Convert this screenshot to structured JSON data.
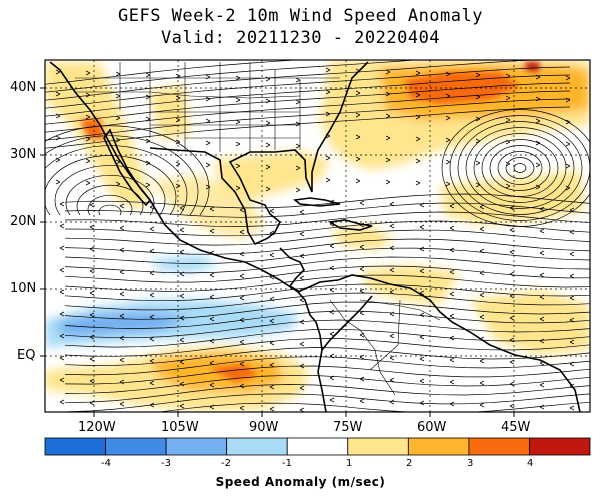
{
  "title": {
    "line1": "GEFS Week-2 10m Wind Speed Anomaly",
    "line2": "Valid: 20211230 - 20220404"
  },
  "map": {
    "lat_labels": [
      "40N",
      "30N",
      "20N",
      "10N",
      "EQ"
    ],
    "lon_labels": [
      "120W",
      "105W",
      "90W",
      "75W",
      "60W",
      "45W"
    ]
  },
  "colorbar": {
    "title": "Speed Anomaly (m/sec)",
    "tick_labels": [
      "-4",
      "-3",
      "-2",
      "-1",
      "1",
      "2",
      "3",
      "4"
    ],
    "colors": [
      "#1f6fd8",
      "#3f8be6",
      "#74aff0",
      "#a9dbf7",
      "#ffffff",
      "#ffe58e",
      "#ffb52b",
      "#f86a0e",
      "#c0170f"
    ]
  }
}
